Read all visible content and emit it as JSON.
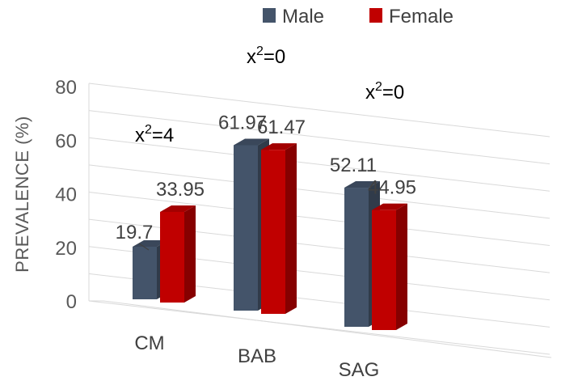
{
  "chart_data": {
    "type": "bar",
    "categories": [
      "CM",
      "BAB",
      "SAG"
    ],
    "series": [
      {
        "name": "Male",
        "values": [
          19.7,
          61.97,
          52.11
        ]
      },
      {
        "name": "Female",
        "values": [
          33.95,
          61.47,
          44.95
        ]
      }
    ],
    "data_labels": {
      "Male": [
        "19.7",
        "61.97",
        "52.11"
      ],
      "Female": [
        "33.95",
        "61.47",
        "44.95"
      ]
    },
    "ylabel": "PREVALENCE (%)",
    "ylim": [
      0,
      80
    ],
    "yticks": [
      "0",
      "20",
      "40",
      "60",
      "80"
    ],
    "grid": true,
    "legend_position": "top",
    "annotations": [
      {
        "category": "CM",
        "base": "x",
        "sup": "2",
        "rest": "=4"
      },
      {
        "category": "BAB",
        "base": "x",
        "sup": "2",
        "rest": "=0"
      },
      {
        "category": "SAG",
        "base": "x",
        "sup": "2",
        "rest": "=0"
      }
    ],
    "colors": {
      "Male": "#44546A",
      "Female": "#C00000",
      "grid": "#D9D9D9"
    }
  }
}
